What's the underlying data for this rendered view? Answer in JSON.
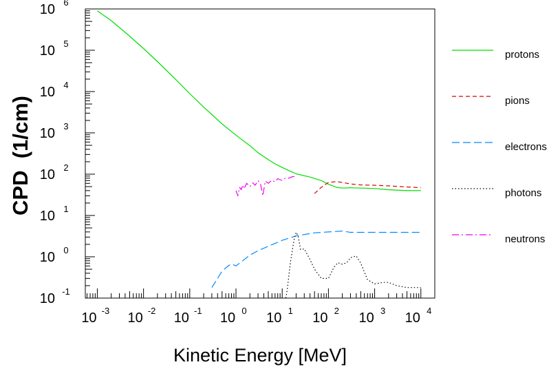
{
  "chart_data": {
    "type": "line",
    "xlabel": "Kinetic Energy [MeV]",
    "ylabel": "CPD  (1/cm)",
    "x_scale": "log",
    "y_scale": "log",
    "xlim": [
      0.00055,
      20000
    ],
    "ylim": [
      0.1,
      1000000
    ],
    "grid": false,
    "legend_position": "right",
    "x_tick_labels": [
      {
        "base": "10",
        "exp": "-3",
        "value": 0.001
      },
      {
        "base": "10",
        "exp": "-2",
        "value": 0.01
      },
      {
        "base": "10",
        "exp": "-1",
        "value": 0.1
      },
      {
        "base": "10",
        "exp": "0",
        "value": 1
      },
      {
        "base": "10",
        "exp": "1",
        "value": 10
      },
      {
        "base": "10",
        "exp": "2",
        "value": 100
      },
      {
        "base": "10",
        "exp": "3",
        "value": 1000
      },
      {
        "base": "10",
        "exp": "4",
        "value": 10000
      }
    ],
    "y_tick_labels": [
      {
        "base": "10",
        "exp": "-1",
        "value": 0.1
      },
      {
        "base": "10",
        "exp": "0",
        "value": 1
      },
      {
        "base": "10",
        "exp": "1",
        "value": 10
      },
      {
        "base": "10",
        "exp": "2",
        "value": 100
      },
      {
        "base": "10",
        "exp": "3",
        "value": 1000
      },
      {
        "base": "10",
        "exp": "4",
        "value": 10000
      },
      {
        "base": "10",
        "exp": "5",
        "value": 100000
      },
      {
        "base": "10",
        "exp": "6",
        "value": 1000000
      }
    ],
    "series": [
      {
        "name": "protons",
        "color": "#00dd00",
        "dash": "solid",
        "x": [
          0.001,
          0.002,
          0.005,
          0.01,
          0.02,
          0.05,
          0.1,
          0.2,
          0.5,
          1,
          2,
          3,
          5,
          7,
          10,
          15,
          20,
          40,
          70,
          100,
          150,
          200,
          300,
          500,
          1000,
          2000,
          5000,
          10000
        ],
        "y": [
          900000,
          520000,
          220000,
          110000,
          53000,
          19500,
          8900,
          4200,
          1650,
          880,
          490,
          330,
          225,
          178,
          145,
          118,
          102,
          85,
          70,
          57,
          48,
          46,
          47,
          46,
          45,
          42,
          40,
          40
        ]
      },
      {
        "name": "pions",
        "color": "#dd0000",
        "dash": "dashed",
        "x": [
          50,
          70,
          100,
          150,
          200,
          300,
          500,
          1000,
          2000,
          5000,
          10000
        ],
        "y": [
          34,
          48,
          63,
          66,
          63,
          58,
          55,
          54,
          52,
          49,
          47
        ]
      },
      {
        "name": "electrons",
        "color": "#0088ff",
        "dash": "longdash",
        "x": [
          0.3,
          0.4,
          0.5,
          0.7,
          0.8,
          1,
          1.5,
          2,
          3,
          5,
          10,
          20,
          50,
          100,
          200,
          300,
          1000,
          10000
        ],
        "y": [
          0.18,
          0.3,
          0.45,
          0.62,
          0.67,
          0.6,
          0.85,
          1.1,
          1.4,
          1.8,
          2.5,
          3.2,
          3.8,
          4,
          4.2,
          3.9,
          3.9,
          3.9
        ]
      },
      {
        "name": "photons",
        "color": "#000000",
        "dash": "dotted",
        "x": [
          12,
          13,
          15,
          18,
          20,
          22,
          25,
          30,
          40,
          50,
          70,
          100,
          130,
          160,
          200,
          250,
          300,
          400,
          500,
          700,
          1000,
          1500,
          2000,
          3000,
          5000,
          10000
        ],
        "y": [
          0.1,
          0.18,
          0.7,
          2.6,
          3.9,
          3.3,
          1.5,
          1.55,
          0.85,
          0.5,
          0.3,
          0.3,
          0.55,
          0.72,
          0.66,
          0.72,
          0.95,
          1.05,
          0.7,
          0.28,
          0.22,
          0.24,
          0.24,
          0.2,
          0.18,
          0.18
        ]
      },
      {
        "name": "neutrons",
        "color": "#ee00ee",
        "dash": "dashdot",
        "x": [
          1,
          1.1,
          1.2,
          1.3,
          1.4,
          1.5,
          1.7,
          2,
          2.3,
          2.6,
          3,
          3.4,
          3.8,
          4.3,
          5,
          6,
          7,
          8,
          10,
          12,
          14,
          16,
          18,
          20
        ],
        "y": [
          40,
          30,
          48,
          42,
          55,
          44,
          60,
          50,
          62,
          54,
          70,
          58,
          30,
          68,
          60,
          72,
          65,
          78,
          70,
          82,
          80,
          86,
          88,
          90
        ]
      }
    ]
  }
}
